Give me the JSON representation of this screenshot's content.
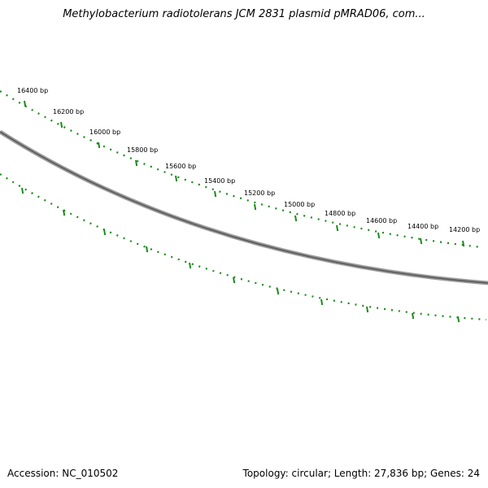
{
  "title": "Methylobacterium radiotolerans JCM 2831 plasmid pMRAD06, com...",
  "footer": {
    "accession": "Accession: NC_010502",
    "summary": "Topology: circular; Length: 27,836 bp; Genes: 24"
  },
  "ruler": {
    "labels": [
      "16400 bp",
      "16200 bp",
      "16000 bp",
      "15800 bp",
      "15600 bp",
      "15400 bp",
      "15200 bp",
      "15000 bp",
      "14800 bp",
      "14600 bp",
      "14400 bp",
      "14200 bp"
    ]
  },
  "colors": {
    "backbone": "#6f6f6f",
    "ticks": "#1a8a1a"
  }
}
